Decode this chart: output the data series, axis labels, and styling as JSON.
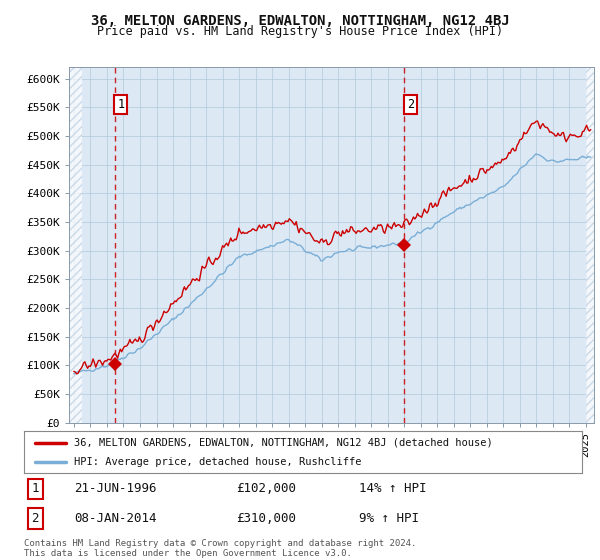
{
  "title": "36, MELTON GARDENS, EDWALTON, NOTTINGHAM, NG12 4BJ",
  "subtitle": "Price paid vs. HM Land Registry's House Price Index (HPI)",
  "background_color": "#ffffff",
  "plot_bg_color": "#dce9f5",
  "hatch_color": "#b8cce0",
  "grid_color": "#aec6d8",
  "line1_color": "#cc0000",
  "line2_color": "#7aaed6",
  "marker_color": "#cc0000",
  "dashed_line_color": "#cc0000",
  "sale1_x": 1996.47,
  "sale1_y": 102000,
  "sale2_x": 2014.02,
  "sale2_y": 310000,
  "sale1_date": "21-JUN-1996",
  "sale1_price": "£102,000",
  "sale1_hpi": "14% ↑ HPI",
  "sale2_date": "08-JAN-2014",
  "sale2_price": "£310,000",
  "sale2_hpi": "9% ↑ HPI",
  "xmin": 1993.7,
  "xmax": 2025.5,
  "ymin": 0,
  "ymax": 620000,
  "yticks": [
    0,
    50000,
    100000,
    150000,
    200000,
    250000,
    300000,
    350000,
    400000,
    450000,
    500000,
    550000,
    600000
  ],
  "ytick_labels": [
    "£0",
    "£50K",
    "£100K",
    "£150K",
    "£200K",
    "£250K",
    "£300K",
    "£350K",
    "£400K",
    "£450K",
    "£500K",
    "£550K",
    "£600K"
  ],
  "legend_label1": "36, MELTON GARDENS, EDWALTON, NOTTINGHAM, NG12 4BJ (detached house)",
  "legend_label2": "HPI: Average price, detached house, Rushcliffe",
  "footer": "Contains HM Land Registry data © Crown copyright and database right 2024.\nThis data is licensed under the Open Government Licence v3.0."
}
